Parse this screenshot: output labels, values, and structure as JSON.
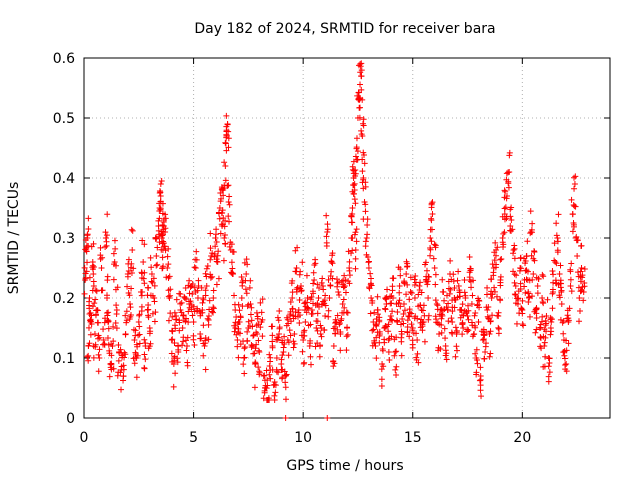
{
  "chart_data": {
    "type": "scatter",
    "title": "Day 182 of 2024, SRMTID for receiver bara",
    "xlabel": "GPS time / hours",
    "ylabel": "SRMTID / TECUs",
    "xlim": [
      0,
      24
    ],
    "ylim": [
      0,
      0.6
    ],
    "xticks": [
      0,
      5,
      10,
      15,
      20
    ],
    "yticks": [
      0,
      0.1,
      0.2,
      0.3,
      0.4,
      0.5,
      0.6
    ],
    "xtick_labels": [
      "0",
      "5",
      "10",
      "15",
      "20"
    ],
    "ytick_labels": [
      "0",
      "0.1",
      "0.2",
      "0.3",
      "0.4",
      "0.5",
      "0.6"
    ],
    "grid": true,
    "marker": "+",
    "color": "#ff0000",
    "series": [
      {
        "name": "SRMTID",
        "points": [
          [
            0.05,
            0.23
          ],
          [
            0.1,
            0.28
          ],
          [
            0.15,
            0.3
          ],
          [
            0.2,
            0.12
          ],
          [
            0.25,
            0.2
          ],
          [
            0.3,
            0.16
          ],
          [
            0.4,
            0.26
          ],
          [
            0.45,
            0.22
          ],
          [
            0.5,
            0.14
          ],
          [
            0.6,
            0.18
          ],
          [
            0.7,
            0.1
          ],
          [
            0.8,
            0.25
          ],
          [
            0.9,
            0.13
          ],
          [
            1.0,
            0.3
          ],
          [
            1.05,
            0.2
          ],
          [
            1.1,
            0.16
          ],
          [
            1.2,
            0.09
          ],
          [
            1.3,
            0.12
          ],
          [
            1.4,
            0.26
          ],
          [
            1.5,
            0.18
          ],
          [
            1.6,
            0.11
          ],
          [
            1.7,
            0.08
          ],
          [
            1.8,
            0.07
          ],
          [
            1.9,
            0.14
          ],
          [
            2.0,
            0.24
          ],
          [
            2.1,
            0.19
          ],
          [
            2.2,
            0.28
          ],
          [
            2.3,
            0.13
          ],
          [
            2.4,
            0.1
          ],
          [
            2.5,
            0.16
          ],
          [
            2.6,
            0.21
          ],
          [
            2.7,
            0.26
          ],
          [
            2.8,
            0.12
          ],
          [
            2.9,
            0.18
          ],
          [
            3.0,
            0.15
          ],
          [
            3.1,
            0.24
          ],
          [
            3.2,
            0.2
          ],
          [
            3.3,
            0.27
          ],
          [
            3.4,
            0.32
          ],
          [
            3.45,
            0.35
          ],
          [
            3.5,
            0.37
          ],
          [
            3.55,
            0.3
          ],
          [
            3.6,
            0.28
          ],
          [
            3.65,
            0.33
          ],
          [
            3.7,
            0.31
          ],
          [
            3.8,
            0.25
          ],
          [
            3.9,
            0.2
          ],
          [
            4.0,
            0.13
          ],
          [
            4.1,
            0.09
          ],
          [
            4.2,
            0.17
          ],
          [
            4.3,
            0.11
          ],
          [
            4.4,
            0.18
          ],
          [
            4.5,
            0.15
          ],
          [
            4.6,
            0.2
          ],
          [
            4.7,
            0.12
          ],
          [
            4.8,
            0.19
          ],
          [
            4.9,
            0.22
          ],
          [
            5.0,
            0.16
          ],
          [
            5.1,
            0.25
          ],
          [
            5.2,
            0.2
          ],
          [
            5.3,
            0.14
          ],
          [
            5.4,
            0.18
          ],
          [
            5.5,
            0.12
          ],
          [
            5.6,
            0.22
          ],
          [
            5.7,
            0.17
          ],
          [
            5.8,
            0.27
          ],
          [
            5.9,
            0.2
          ],
          [
            6.0,
            0.3
          ],
          [
            6.1,
            0.26
          ],
          [
            6.2,
            0.35
          ],
          [
            6.3,
            0.32
          ],
          [
            6.35,
            0.38
          ],
          [
            6.4,
            0.3
          ],
          [
            6.45,
            0.42
          ],
          [
            6.5,
            0.47
          ],
          [
            6.55,
            0.49
          ],
          [
            6.6,
            0.36
          ],
          [
            6.7,
            0.28
          ],
          [
            6.8,
            0.24
          ],
          [
            6.9,
            0.18
          ],
          [
            7.0,
            0.13
          ],
          [
            7.1,
            0.16
          ],
          [
            7.2,
            0.2
          ],
          [
            7.3,
            0.1
          ],
          [
            7.4,
            0.24
          ],
          [
            7.5,
            0.15
          ],
          [
            7.6,
            0.19
          ],
          [
            7.7,
            0.12
          ],
          [
            7.8,
            0.09
          ],
          [
            7.9,
            0.14
          ],
          [
            8.0,
            0.11
          ],
          [
            8.1,
            0.16
          ],
          [
            8.2,
            0.07
          ],
          [
            8.3,
            0.05
          ],
          [
            8.4,
            0.03
          ],
          [
            8.5,
            0.08
          ],
          [
            8.6,
            0.12
          ],
          [
            8.7,
            0.06
          ],
          [
            8.8,
            0.1
          ],
          [
            8.9,
            0.14
          ],
          [
            9.0,
            0.09
          ],
          [
            9.1,
            0.11
          ],
          [
            9.2,
            0.07
          ],
          [
            9.3,
            0.13
          ],
          [
            9.4,
            0.17
          ],
          [
            9.5,
            0.2
          ],
          [
            9.6,
            0.14
          ],
          [
            9.7,
            0.25
          ],
          [
            9.8,
            0.18
          ],
          [
            9.9,
            0.22
          ],
          [
            10.0,
            0.13
          ],
          [
            10.1,
            0.16
          ],
          [
            10.2,
            0.2
          ],
          [
            10.3,
            0.12
          ],
          [
            10.4,
            0.18
          ],
          [
            10.5,
            0.23
          ],
          [
            10.6,
            0.15
          ],
          [
            10.7,
            0.2
          ],
          [
            10.8,
            0.14
          ],
          [
            10.9,
            0.22
          ],
          [
            11.0,
            0.17
          ],
          [
            11.1,
            0.31
          ],
          [
            11.2,
            0.2
          ],
          [
            11.3,
            0.26
          ],
          [
            11.4,
            0.12
          ],
          [
            11.5,
            0.16
          ],
          [
            11.6,
            0.21
          ],
          [
            11.7,
            0.14
          ],
          [
            11.8,
            0.19
          ],
          [
            11.9,
            0.22
          ],
          [
            12.0,
            0.15
          ],
          [
            12.1,
            0.25
          ],
          [
            12.2,
            0.3
          ],
          [
            12.25,
            0.35
          ],
          [
            12.3,
            0.4
          ],
          [
            12.35,
            0.38
          ],
          [
            12.4,
            0.28
          ],
          [
            12.45,
            0.43
          ],
          [
            12.5,
            0.5
          ],
          [
            12.55,
            0.53
          ],
          [
            12.6,
            0.59
          ],
          [
            12.65,
            0.57
          ],
          [
            12.7,
            0.47
          ],
          [
            12.75,
            0.4
          ],
          [
            12.8,
            0.36
          ],
          [
            12.9,
            0.3
          ],
          [
            13.0,
            0.25
          ],
          [
            13.1,
            0.2
          ],
          [
            13.2,
            0.16
          ],
          [
            13.3,
            0.12
          ],
          [
            13.4,
            0.18
          ],
          [
            13.5,
            0.14
          ],
          [
            13.6,
            0.09
          ],
          [
            13.7,
            0.15
          ],
          [
            13.8,
            0.19
          ],
          [
            13.9,
            0.13
          ],
          [
            14.0,
            0.17
          ],
          [
            14.1,
            0.2
          ],
          [
            14.2,
            0.11
          ],
          [
            14.3,
            0.16
          ],
          [
            14.4,
            0.22
          ],
          [
            14.5,
            0.14
          ],
          [
            14.6,
            0.19
          ],
          [
            14.7,
            0.24
          ],
          [
            14.8,
            0.17
          ],
          [
            14.9,
            0.21
          ],
          [
            15.0,
            0.15
          ],
          [
            15.1,
            0.2
          ],
          [
            15.2,
            0.13
          ],
          [
            15.3,
            0.22
          ],
          [
            15.4,
            0.18
          ],
          [
            15.5,
            0.16
          ],
          [
            15.6,
            0.23
          ],
          [
            15.7,
            0.2
          ],
          [
            15.8,
            0.3
          ],
          [
            15.9,
            0.34
          ],
          [
            16.0,
            0.25
          ],
          [
            16.1,
            0.19
          ],
          [
            16.2,
            0.14
          ],
          [
            16.3,
            0.17
          ],
          [
            16.4,
            0.21
          ],
          [
            16.5,
            0.12
          ],
          [
            16.6,
            0.18
          ],
          [
            16.7,
            0.24
          ],
          [
            16.8,
            0.16
          ],
          [
            16.9,
            0.2
          ],
          [
            17.0,
            0.14
          ],
          [
            17.1,
            0.22
          ],
          [
            17.2,
            0.18
          ],
          [
            17.3,
            0.15
          ],
          [
            17.4,
            0.2
          ],
          [
            17.5,
            0.17
          ],
          [
            17.6,
            0.23
          ],
          [
            17.7,
            0.19
          ],
          [
            17.8,
            0.14
          ],
          [
            17.9,
            0.1
          ],
          [
            18.0,
            0.16
          ],
          [
            18.1,
            0.07
          ],
          [
            18.2,
            0.13
          ],
          [
            18.3,
            0.11
          ],
          [
            18.4,
            0.18
          ],
          [
            18.5,
            0.14
          ],
          [
            18.6,
            0.2
          ],
          [
            18.7,
            0.25
          ],
          [
            18.8,
            0.28
          ],
          [
            18.9,
            0.17
          ],
          [
            19.0,
            0.23
          ],
          [
            19.1,
            0.3
          ],
          [
            19.2,
            0.34
          ],
          [
            19.3,
            0.37
          ],
          [
            19.4,
            0.41
          ],
          [
            19.5,
            0.33
          ],
          [
            19.6,
            0.28
          ],
          [
            19.7,
            0.22
          ],
          [
            19.8,
            0.19
          ],
          [
            19.9,
            0.25
          ],
          [
            20.0,
            0.18
          ],
          [
            20.1,
            0.23
          ],
          [
            20.2,
            0.27
          ],
          [
            20.3,
            0.2
          ],
          [
            20.4,
            0.31
          ],
          [
            20.5,
            0.24
          ],
          [
            20.6,
            0.18
          ],
          [
            20.7,
            0.22
          ],
          [
            20.8,
            0.15
          ],
          [
            20.9,
            0.2
          ],
          [
            21.0,
            0.12
          ],
          [
            21.1,
            0.17
          ],
          [
            21.2,
            0.1
          ],
          [
            21.3,
            0.15
          ],
          [
            21.4,
            0.21
          ],
          [
            21.5,
            0.26
          ],
          [
            21.6,
            0.3
          ],
          [
            21.7,
            0.24
          ],
          [
            21.8,
            0.19
          ],
          [
            21.9,
            0.13
          ],
          [
            22.0,
            0.09
          ],
          [
            22.1,
            0.16
          ],
          [
            22.2,
            0.22
          ],
          [
            22.3,
            0.34
          ],
          [
            22.4,
            0.39
          ],
          [
            22.5,
            0.27
          ],
          [
            22.6,
            0.2
          ],
          [
            22.7,
            0.25
          ],
          [
            22.8,
            0.21
          ],
          [
            9.2,
            0.0
          ],
          [
            11.1,
            0.0
          ]
        ]
      }
    ]
  }
}
